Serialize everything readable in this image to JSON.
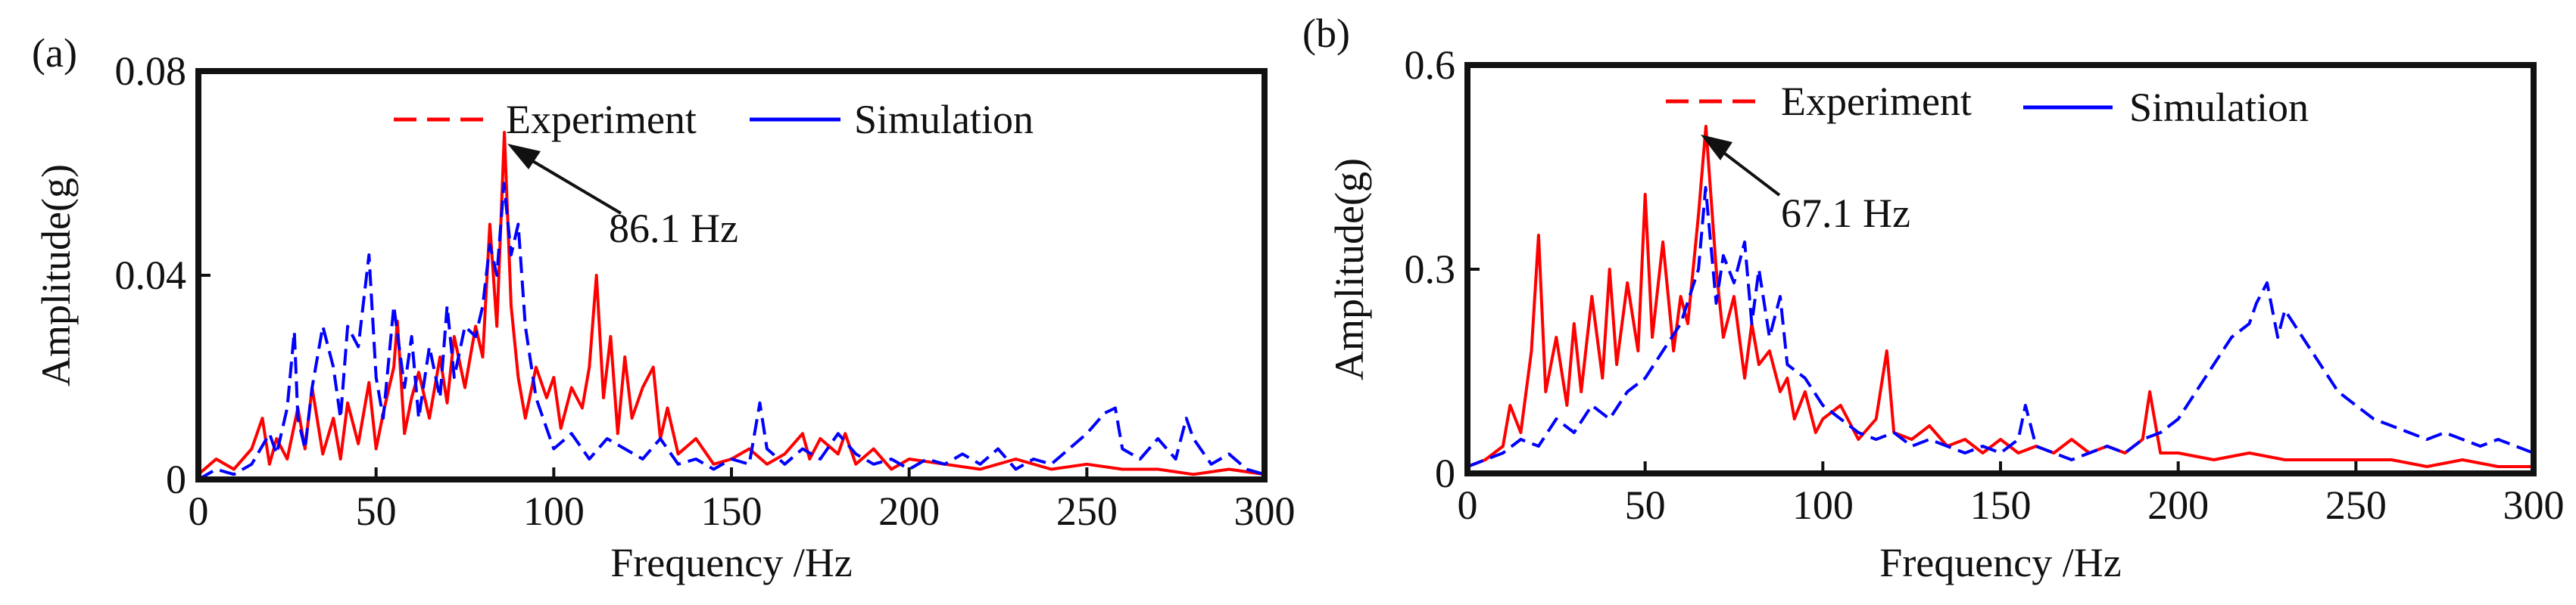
{
  "chart_data": [
    {
      "panel_label": "(a)",
      "type": "line",
      "xlabel": "Frequency /Hz",
      "ylabel": "Amplitude(g)",
      "xlim": [
        0,
        300
      ],
      "ylim": [
        0,
        0.08
      ],
      "xticks": [
        0,
        50,
        100,
        150,
        200,
        250,
        300
      ],
      "xtick_labels": [
        "0",
        "50",
        "100",
        "150",
        "200",
        "250",
        "300"
      ],
      "yticks": [
        0,
        0.04,
        0.08
      ],
      "ytick_labels": [
        "0",
        "0.04",
        "0.08"
      ],
      "legend": {
        "position": "top-center",
        "entries": [
          "Experiment",
          "Simulation"
        ]
      },
      "annotation": {
        "text": "86.1 Hz",
        "x": 86.1,
        "y": 0.067
      },
      "series": [
        {
          "name": "Experiment",
          "color": "#ff0000",
          "style": "solid",
          "x": [
            0,
            5,
            10,
            15,
            18,
            20,
            22,
            25,
            28,
            30,
            32,
            35,
            38,
            40,
            42,
            45,
            48,
            50,
            52,
            55,
            56,
            58,
            60,
            62,
            65,
            68,
            70,
            72,
            75,
            78,
            80,
            82,
            84,
            86.1,
            88,
            90,
            92,
            95,
            98,
            100,
            102,
            105,
            108,
            110,
            112,
            114,
            116,
            118,
            120,
            122,
            125,
            128,
            130,
            132,
            135,
            140,
            145,
            150,
            155,
            160,
            165,
            170,
            172,
            175,
            180,
            182,
            185,
            190,
            195,
            200,
            210,
            220,
            230,
            240,
            250,
            260,
            270,
            280,
            290,
            300
          ],
          "y": [
            0.001,
            0.004,
            0.002,
            0.006,
            0.012,
            0.003,
            0.008,
            0.004,
            0.014,
            0.006,
            0.018,
            0.005,
            0.012,
            0.004,
            0.015,
            0.007,
            0.019,
            0.006,
            0.013,
            0.022,
            0.031,
            0.009,
            0.016,
            0.021,
            0.012,
            0.024,
            0.015,
            0.028,
            0.018,
            0.03,
            0.024,
            0.05,
            0.03,
            0.068,
            0.034,
            0.02,
            0.012,
            0.022,
            0.016,
            0.02,
            0.01,
            0.018,
            0.014,
            0.022,
            0.04,
            0.016,
            0.028,
            0.009,
            0.024,
            0.012,
            0.018,
            0.022,
            0.008,
            0.014,
            0.005,
            0.008,
            0.003,
            0.004,
            0.006,
            0.003,
            0.005,
            0.009,
            0.004,
            0.008,
            0.005,
            0.009,
            0.003,
            0.006,
            0.002,
            0.004,
            0.003,
            0.002,
            0.004,
            0.002,
            0.003,
            0.002,
            0.002,
            0.001,
            0.002,
            0.001
          ]
        },
        {
          "name": "Simulation",
          "color": "#0000ff",
          "style": "dashed",
          "x": [
            0,
            5,
            10,
            15,
            20,
            22,
            25,
            27,
            28,
            30,
            32,
            35,
            38,
            40,
            42,
            45,
            48,
            50,
            52,
            55,
            58,
            60,
            62,
            65,
            68,
            70,
            72,
            75,
            78,
            80,
            82,
            84,
            86,
            88,
            90,
            92,
            95,
            98,
            100,
            105,
            110,
            115,
            120,
            125,
            130,
            135,
            140,
            145,
            150,
            155,
            158,
            160,
            165,
            170,
            175,
            180,
            185,
            190,
            195,
            200,
            205,
            210,
            215,
            220,
            225,
            230,
            235,
            240,
            245,
            250,
            255,
            258,
            260,
            265,
            270,
            275,
            278,
            280,
            285,
            290,
            295,
            300
          ],
          "y": [
            0.0,
            0.002,
            0.001,
            0.003,
            0.009,
            0.005,
            0.014,
            0.029,
            0.012,
            0.006,
            0.018,
            0.03,
            0.022,
            0.012,
            0.03,
            0.026,
            0.044,
            0.02,
            0.012,
            0.034,
            0.018,
            0.028,
            0.012,
            0.026,
            0.016,
            0.034,
            0.02,
            0.03,
            0.028,
            0.034,
            0.046,
            0.04,
            0.058,
            0.044,
            0.05,
            0.03,
            0.016,
            0.01,
            0.006,
            0.009,
            0.004,
            0.008,
            0.006,
            0.004,
            0.008,
            0.003,
            0.004,
            0.002,
            0.004,
            0.003,
            0.015,
            0.006,
            0.003,
            0.006,
            0.004,
            0.009,
            0.005,
            0.003,
            0.004,
            0.002,
            0.004,
            0.003,
            0.005,
            0.003,
            0.006,
            0.002,
            0.004,
            0.003,
            0.006,
            0.009,
            0.013,
            0.014,
            0.006,
            0.004,
            0.008,
            0.004,
            0.012,
            0.008,
            0.003,
            0.005,
            0.002,
            0.001
          ]
        }
      ]
    },
    {
      "panel_label": "(b)",
      "type": "line",
      "xlabel": "Frequency /Hz",
      "ylabel": "Amplitude(g)",
      "xlim": [
        0,
        300
      ],
      "ylim": [
        0,
        0.6
      ],
      "xticks": [
        0,
        50,
        100,
        150,
        200,
        250,
        300
      ],
      "xtick_labels": [
        "0",
        "50",
        "100",
        "150",
        "200",
        "250",
        "300"
      ],
      "yticks": [
        0,
        0.3,
        0.6
      ],
      "ytick_labels": [
        "0",
        "0.3",
        "0.6"
      ],
      "legend": {
        "position": "top-center",
        "entries": [
          "Experiment",
          "Simulation"
        ]
      },
      "annotation": {
        "text": "67.1 Hz",
        "x": 67.1,
        "y": 0.51
      },
      "series": [
        {
          "name": "Experiment",
          "color": "#ff0000",
          "style": "solid",
          "x": [
            0,
            5,
            10,
            12,
            15,
            18,
            20,
            22,
            25,
            28,
            30,
            32,
            35,
            38,
            40,
            42,
            45,
            48,
            50,
            52,
            55,
            58,
            60,
            62,
            65,
            67.1,
            70,
            72,
            75,
            78,
            80,
            82,
            85,
            88,
            90,
            92,
            95,
            98,
            100,
            105,
            110,
            115,
            118,
            120,
            125,
            130,
            135,
            140,
            145,
            150,
            155,
            160,
            165,
            170,
            175,
            180,
            185,
            190,
            192,
            195,
            200,
            210,
            220,
            230,
            240,
            250,
            260,
            270,
            280,
            290,
            300
          ],
          "y": [
            0.01,
            0.02,
            0.04,
            0.1,
            0.06,
            0.18,
            0.35,
            0.12,
            0.2,
            0.1,
            0.22,
            0.12,
            0.26,
            0.14,
            0.3,
            0.16,
            0.28,
            0.18,
            0.41,
            0.2,
            0.34,
            0.18,
            0.26,
            0.22,
            0.38,
            0.51,
            0.3,
            0.2,
            0.26,
            0.14,
            0.22,
            0.16,
            0.18,
            0.12,
            0.14,
            0.08,
            0.12,
            0.06,
            0.08,
            0.1,
            0.05,
            0.08,
            0.18,
            0.06,
            0.05,
            0.07,
            0.04,
            0.05,
            0.03,
            0.05,
            0.03,
            0.04,
            0.03,
            0.05,
            0.03,
            0.04,
            0.03,
            0.05,
            0.12,
            0.03,
            0.03,
            0.02,
            0.03,
            0.02,
            0.02,
            0.02,
            0.02,
            0.01,
            0.02,
            0.01,
            0.01
          ]
        },
        {
          "name": "Simulation",
          "color": "#0000ff",
          "style": "dashed",
          "x": [
            0,
            5,
            10,
            15,
            20,
            25,
            30,
            35,
            40,
            45,
            50,
            55,
            60,
            65,
            67,
            70,
            72,
            75,
            78,
            80,
            82,
            85,
            88,
            90,
            95,
            100,
            105,
            110,
            115,
            120,
            125,
            130,
            135,
            140,
            145,
            150,
            155,
            157,
            160,
            165,
            170,
            175,
            180,
            185,
            190,
            195,
            200,
            205,
            210,
            215,
            220,
            222,
            225,
            228,
            230,
            235,
            240,
            245,
            250,
            255,
            260,
            265,
            270,
            275,
            280,
            285,
            290,
            295,
            300
          ],
          "y": [
            0.01,
            0.02,
            0.03,
            0.05,
            0.04,
            0.08,
            0.06,
            0.1,
            0.08,
            0.12,
            0.14,
            0.18,
            0.22,
            0.3,
            0.42,
            0.25,
            0.32,
            0.28,
            0.34,
            0.22,
            0.3,
            0.2,
            0.26,
            0.16,
            0.14,
            0.1,
            0.08,
            0.06,
            0.05,
            0.06,
            0.04,
            0.05,
            0.04,
            0.03,
            0.04,
            0.03,
            0.05,
            0.1,
            0.04,
            0.03,
            0.02,
            0.03,
            0.04,
            0.03,
            0.05,
            0.06,
            0.08,
            0.12,
            0.16,
            0.2,
            0.22,
            0.25,
            0.28,
            0.2,
            0.24,
            0.2,
            0.16,
            0.12,
            0.1,
            0.08,
            0.07,
            0.06,
            0.05,
            0.06,
            0.05,
            0.04,
            0.05,
            0.04,
            0.03
          ]
        }
      ]
    }
  ]
}
